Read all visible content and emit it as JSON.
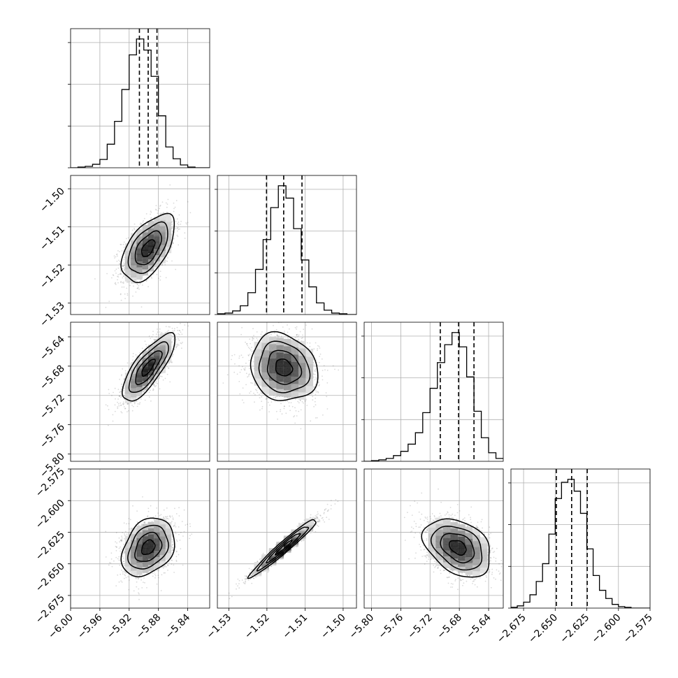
{
  "chart_data": {
    "type": "corner",
    "title": "",
    "grid": true,
    "parameters": [
      {
        "index": 0,
        "range": [
          -6.0,
          -5.81
        ],
        "ticks": [
          -6.0,
          -5.96,
          -5.92,
          -5.88,
          -5.84
        ],
        "tick_labels": [
          "−6.00",
          "−5.96",
          "−5.92",
          "−5.88",
          "−5.84"
        ],
        "quantiles": [
          -5.906,
          -5.894,
          -5.882
        ],
        "hist_bin_edges": [
          -6.0,
          -5.99,
          -5.98,
          -5.97,
          -5.96,
          -5.95,
          -5.94,
          -5.93,
          -5.92,
          -5.91,
          -5.9,
          -5.89,
          -5.88,
          -5.87,
          -5.86,
          -5.85,
          -5.84,
          -5.83,
          -5.82,
          -5.81
        ],
        "hist_counts": [
          0,
          1,
          2,
          5,
          12,
          34,
          67,
          113,
          163,
          186,
          170,
          132,
          75,
          30,
          13,
          4,
          1,
          0,
          0
        ]
      },
      {
        "index": 1,
        "range": [
          -1.533,
          -1.4965
        ],
        "ticks": [
          -1.53,
          -1.52,
          -1.51,
          -1.5
        ],
        "tick_labels": [
          "−1.53",
          "−1.52",
          "−1.51",
          "−1.50"
        ],
        "quantiles": [
          -1.5201,
          -1.5156,
          -1.5108
        ],
        "hist_bin_edges": [
          -1.533,
          -1.531,
          -1.529,
          -1.527,
          -1.525,
          -1.523,
          -1.521,
          -1.519,
          -1.517,
          -1.515,
          -1.513,
          -1.511,
          -1.509,
          -1.507,
          -1.505,
          -1.503,
          -1.501,
          -1.499,
          -1.4965
        ],
        "hist_counts": [
          1,
          2,
          5,
          12,
          30,
          62,
          103,
          147,
          177,
          160,
          118,
          75,
          38,
          16,
          6,
          2,
          1,
          0
        ]
      },
      {
        "index": 2,
        "range": [
          -5.81,
          -5.62
        ],
        "ticks": [
          -5.8,
          -5.76,
          -5.72,
          -5.68,
          -5.64
        ],
        "tick_labels": [
          "−5.80",
          "−5.76",
          "−5.72",
          "−5.68",
          "−5.64"
        ],
        "quantiles": [
          -5.706,
          -5.681,
          -5.66
        ],
        "hist_bin_edges": [
          -5.81,
          -5.8,
          -5.79,
          -5.78,
          -5.77,
          -5.76,
          -5.75,
          -5.74,
          -5.73,
          -5.72,
          -5.71,
          -5.7,
          -5.69,
          -5.68,
          -5.67,
          -5.66,
          -5.65,
          -5.64,
          -5.63,
          -5.62
        ],
        "hist_counts": [
          0,
          1,
          2,
          4,
          8,
          14,
          24,
          40,
          68,
          102,
          138,
          163,
          180,
          160,
          118,
          70,
          33,
          12,
          4
        ]
      },
      {
        "index": 3,
        "range": [
          -2.685,
          -2.575
        ],
        "ticks": [
          -2.675,
          -2.65,
          -2.625,
          -2.6,
          -2.575
        ],
        "tick_labels": [
          "−2.675",
          "−2.650",
          "−2.625",
          "−2.600",
          "−2.575"
        ],
        "quantiles": [
          -2.6491,
          -2.637,
          -2.6247
        ],
        "hist_bin_edges": [
          -2.685,
          -2.68,
          -2.675,
          -2.67,
          -2.665,
          -2.66,
          -2.655,
          -2.65,
          -2.645,
          -2.64,
          -2.635,
          -2.63,
          -2.625,
          -2.62,
          -2.615,
          -2.61,
          -2.605,
          -2.6,
          -2.595,
          -2.59,
          -2.585,
          -2.575
        ],
        "hist_counts": [
          1,
          3,
          8,
          18,
          36,
          60,
          100,
          148,
          170,
          174,
          158,
          128,
          80,
          44,
          24,
          13,
          5,
          2,
          1,
          0,
          0
        ]
      }
    ],
    "pairs": [
      {
        "x_param": 0,
        "y_param": 1,
        "mean": [
          -5.894,
          -1.5156
        ],
        "sd": [
          0.018,
          0.0044
        ],
        "corr": 0.55
      },
      {
        "x_param": 0,
        "y_param": 2,
        "mean": [
          -5.894,
          -5.682
        ],
        "sd": [
          0.018,
          0.023
        ],
        "corr": 0.78
      },
      {
        "x_param": 1,
        "y_param": 2,
        "mean": [
          -1.5156,
          -5.682
        ],
        "sd": [
          0.0044,
          0.023
        ],
        "corr": -0.15
      },
      {
        "x_param": 0,
        "y_param": 3,
        "mean": [
          -5.894,
          -2.637
        ],
        "sd": [
          0.018,
          0.0115
        ],
        "corr": 0.3
      },
      {
        "x_param": 1,
        "y_param": 3,
        "mean": [
          -1.5156,
          -2.637
        ],
        "sd": [
          0.0044,
          0.0115
        ],
        "corr": 0.97
      },
      {
        "x_param": 2,
        "y_param": 3,
        "mean": [
          -5.682,
          -2.637
        ],
        "sd": [
          0.023,
          0.0115
        ],
        "corr": -0.35
      }
    ],
    "contour_levels_sigma": [
      0.5,
      1.0,
      1.5,
      2.0
    ]
  }
}
